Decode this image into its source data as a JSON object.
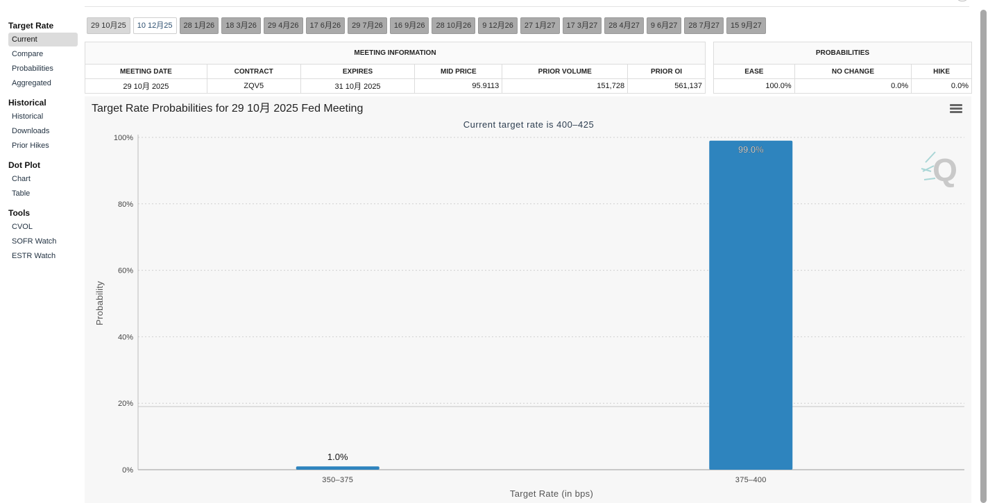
{
  "sidebar": {
    "sections": [
      {
        "heading": "Target Rate",
        "items": [
          "Current",
          "Compare",
          "Probabilities",
          "Aggregated"
        ]
      },
      {
        "heading": "Historical",
        "items": [
          "Historical",
          "Downloads",
          "Prior Hikes"
        ]
      },
      {
        "heading": "Dot Plot",
        "items": [
          "Chart",
          "Table"
        ]
      },
      {
        "heading": "Tools",
        "items": [
          "CVOL",
          "SOFR Watch",
          "ESTR Watch"
        ]
      }
    ],
    "active_item": "Current"
  },
  "tabs": [
    "29 10月25",
    "10 12月25",
    "28 1月26",
    "18 3月26",
    "29 4月26",
    "17 6月26",
    "29 7月26",
    "16 9月26",
    "28 10月26",
    "9 12月26",
    "27 1月27",
    "17 3月27",
    "28 4月27",
    "9 6月27",
    "28 7月27",
    "15 9月27"
  ],
  "selected_tab": "10 12月25",
  "meeting_info": {
    "title": "MEETING INFORMATION",
    "headers": [
      "MEETING DATE",
      "CONTRACT",
      "EXPIRES",
      "MID PRICE",
      "PRIOR VOLUME",
      "PRIOR OI"
    ],
    "row": [
      "29 10月 2025",
      "ZQV5",
      "31 10月 2025",
      "95.9113",
      "151,728",
      "561,137"
    ]
  },
  "probabilities": {
    "title": "PROBABILITIES",
    "headers": [
      "EASE",
      "NO CHANGE",
      "HIKE"
    ],
    "row": [
      "100.0%",
      "0.0%",
      "0.0%"
    ]
  },
  "chart_data": {
    "type": "bar",
    "title": "Target Rate Probabilities for 29 10月 2025 Fed Meeting",
    "subtitle": "Current target rate is 400–425",
    "xlabel": "Target Rate (in bps)",
    "ylabel": "Probability",
    "categories": [
      "350–375",
      "375–400"
    ],
    "values": [
      1.0,
      99.0
    ],
    "data_labels": [
      "1.0%",
      "99.0%"
    ],
    "ylim": [
      0,
      100
    ],
    "yticks": [
      0,
      20,
      40,
      60,
      80,
      100
    ],
    "ytick_labels": [
      "0%",
      "20%",
      "40%",
      "60%",
      "80%",
      "100%"
    ],
    "plot_line": 19,
    "grid": true,
    "bar_color": "#2e84be"
  },
  "colors": {
    "bar": "#2e84be",
    "watermark": "#a9d6d6"
  }
}
